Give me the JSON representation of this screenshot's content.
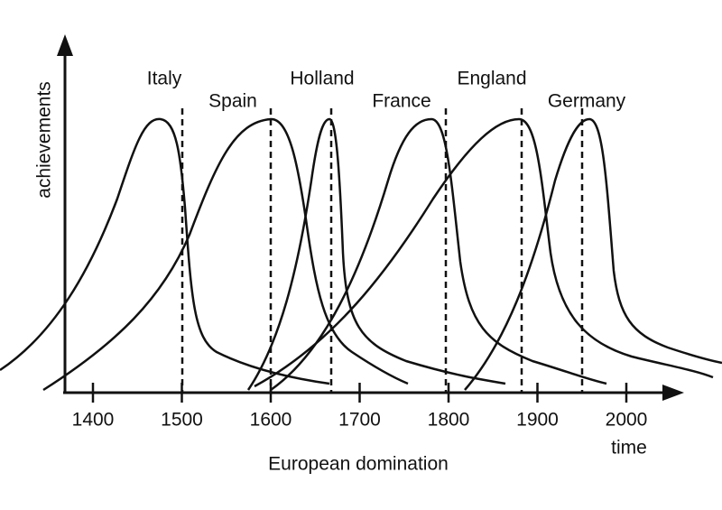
{
  "y_axis": {
    "label": "achievements"
  },
  "x_axis": {
    "ticks": [
      1400,
      1500,
      1600,
      1700,
      1800,
      1900,
      2000
    ],
    "unit_label": "time",
    "label": "European domination"
  },
  "countries": [
    "Italy",
    "Spain",
    "Holland",
    "France",
    "England",
    "Germany"
  ]
}
